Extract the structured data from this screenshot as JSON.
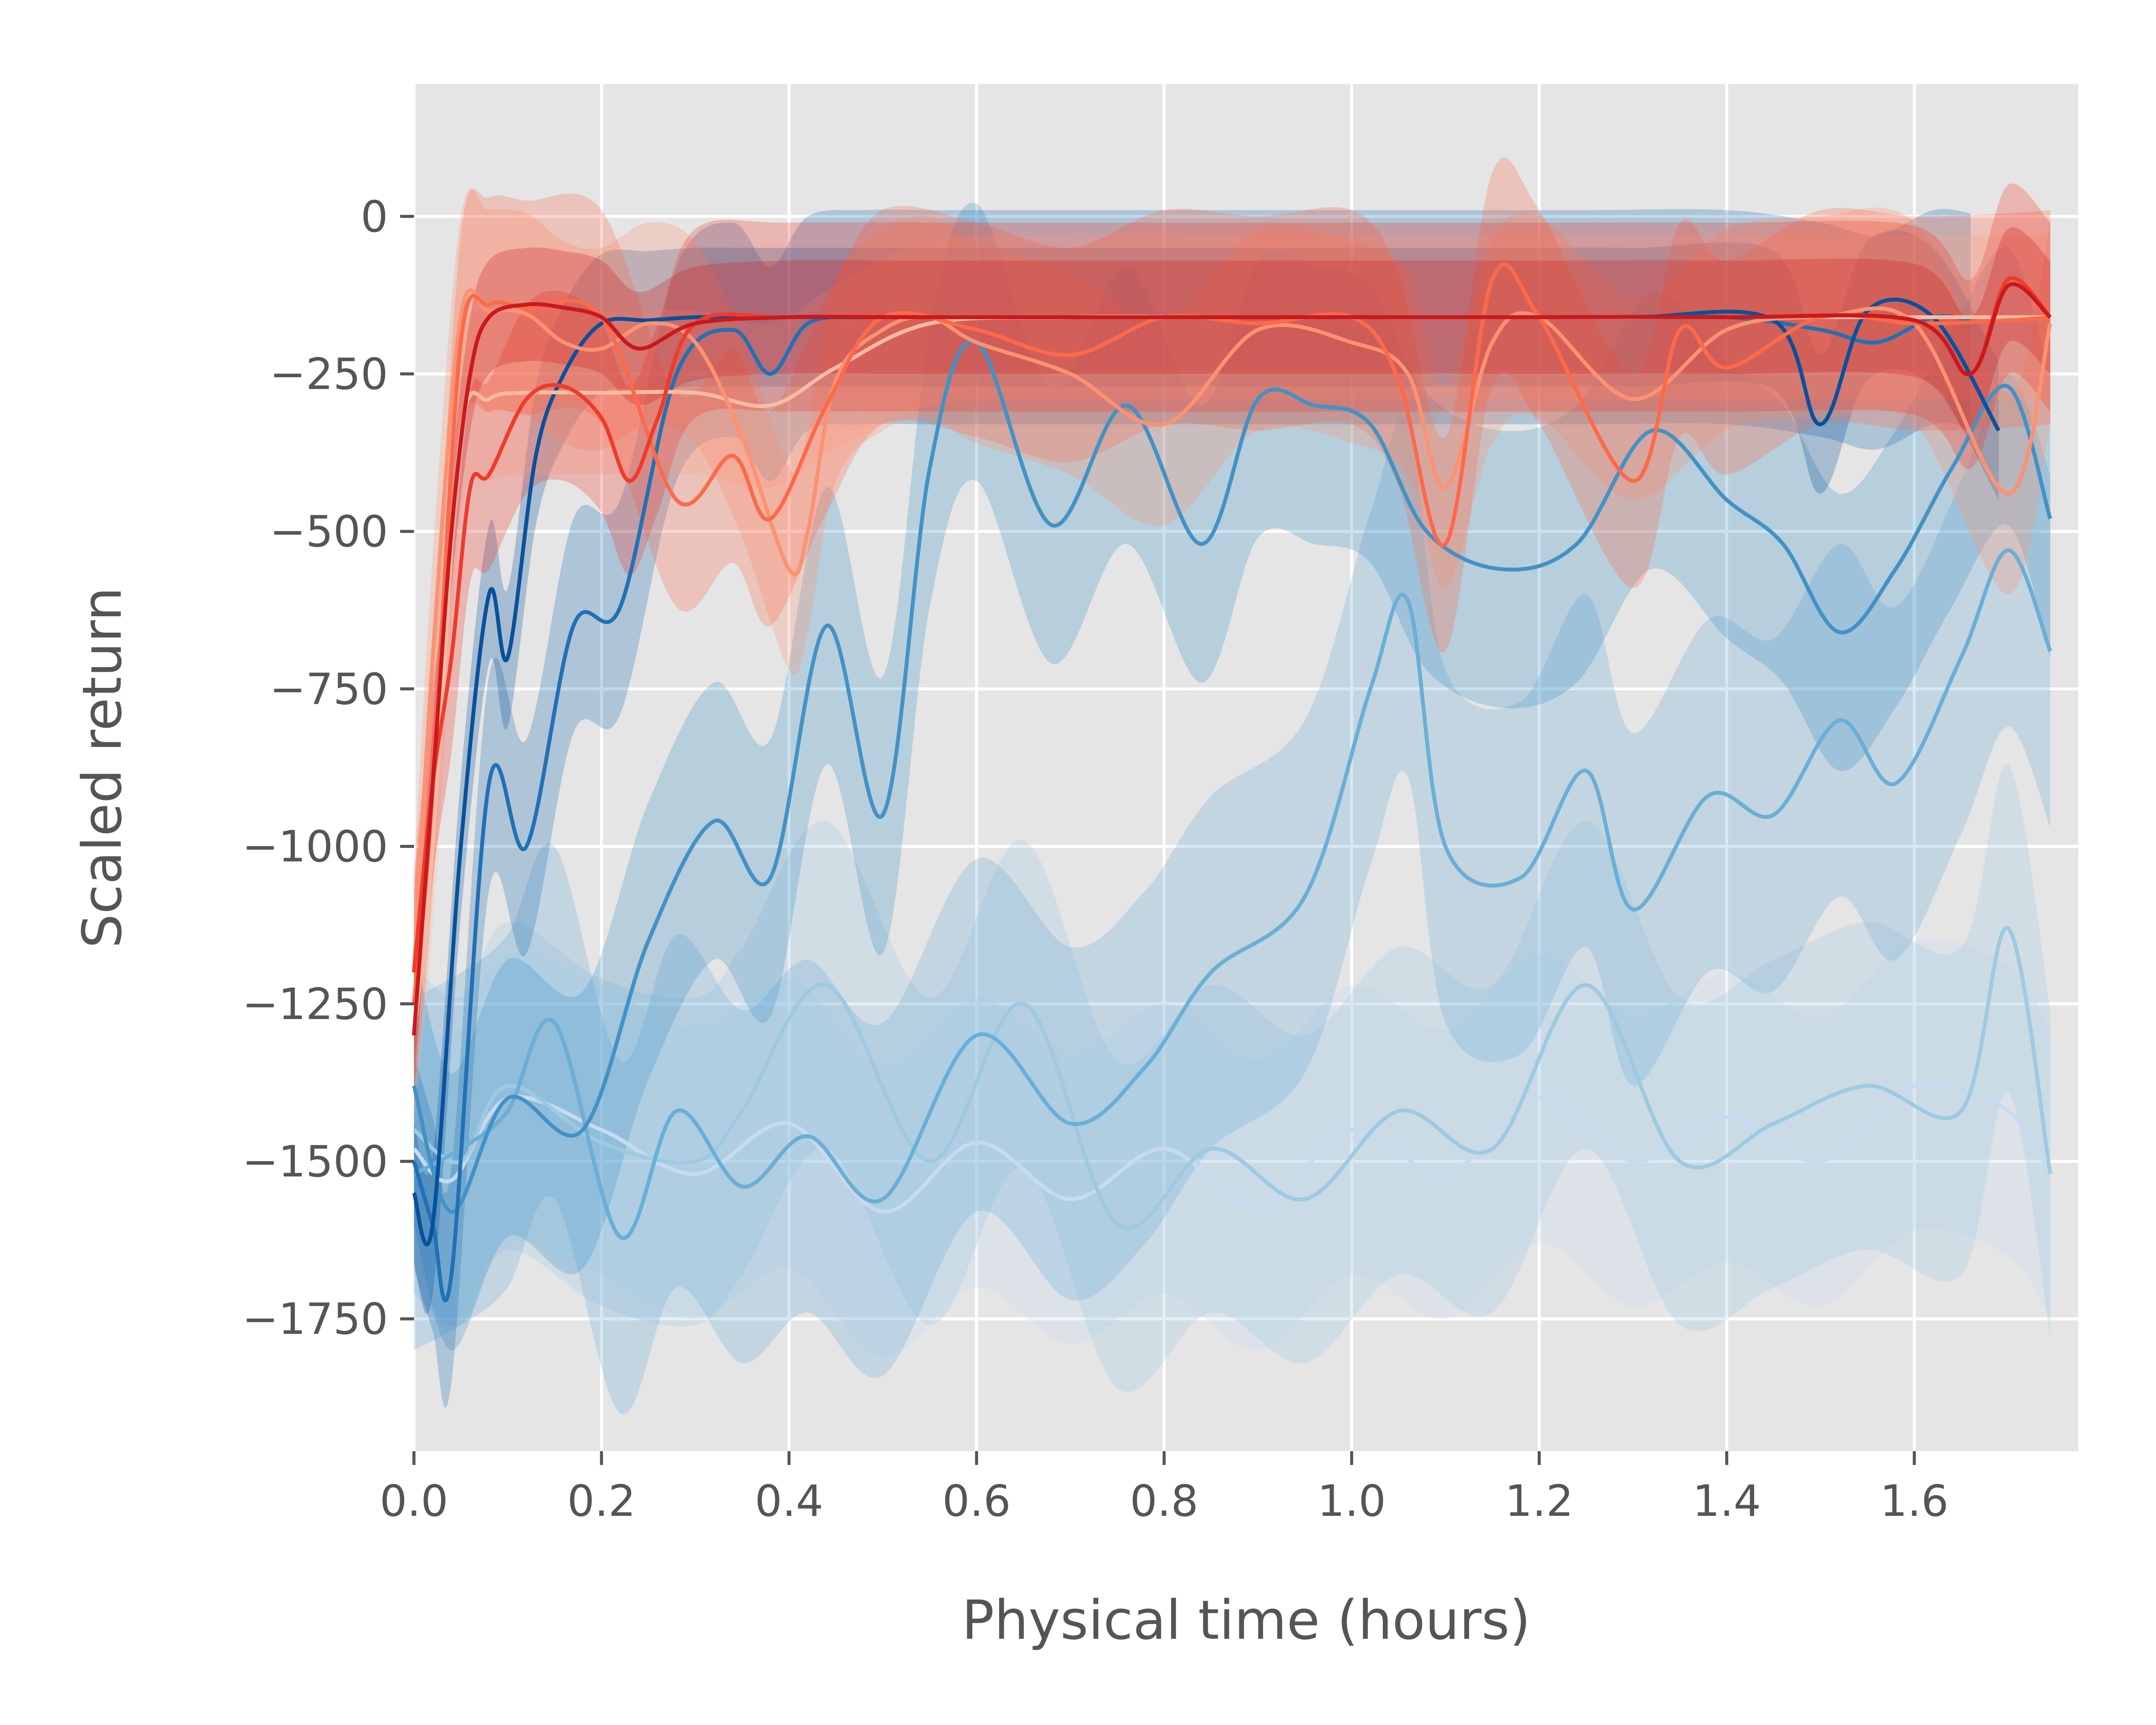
{
  "chart_data": {
    "type": "line",
    "xlabel": "Physical time (hours)",
    "ylabel": "Scaled return",
    "xlim": [
      0.0,
      1.775
    ],
    "ylim": [
      -1960,
      210
    ],
    "xticks": [
      "0.0",
      "0.2",
      "0.4",
      "0.6",
      "0.8",
      "1.0",
      "1.2",
      "1.4",
      "1.6"
    ],
    "yticks": [
      "0",
      "−250",
      "−500",
      "−750",
      "−1000",
      "−1250",
      "−1500",
      "−1750"
    ],
    "grid": true,
    "background": "#e5e5e5",
    "series": [
      {
        "color": "#c6dbef",
        "band": 230,
        "x": [
          0.0,
          0.04,
          0.1,
          0.2,
          0.3,
          0.4,
          0.5,
          0.6,
          0.7,
          0.8,
          0.9,
          1.0,
          1.1,
          1.2,
          1.3,
          1.4,
          1.5,
          1.6,
          1.7,
          1.745
        ],
        "y": [
          -1480,
          -1530,
          -1400,
          -1450,
          -1520,
          -1440,
          -1580,
          -1470,
          -1560,
          -1480,
          -1570,
          -1450,
          -1520,
          -1400,
          -1500,
          -1430,
          -1500,
          -1380,
          -1420,
          -1520
        ]
      },
      {
        "color": "#9ecae1",
        "band": 260,
        "x": [
          0.0,
          0.05,
          0.1,
          0.2,
          0.3,
          0.35,
          0.44,
          0.55,
          0.65,
          0.75,
          0.85,
          0.95,
          1.05,
          1.15,
          1.25,
          1.35,
          1.45,
          1.55,
          1.65,
          1.7,
          1.745
        ],
        "y": [
          -1450,
          -1500,
          -1380,
          -1470,
          -1500,
          -1420,
          -1220,
          -1500,
          -1250,
          -1600,
          -1480,
          -1560,
          -1420,
          -1480,
          -1220,
          -1500,
          -1440,
          -1380,
          -1420,
          -1130,
          -1520
        ]
      },
      {
        "color": "#6baed6",
        "band": 280,
        "x": [
          0.0,
          0.05,
          0.1,
          0.15,
          0.22,
          0.28,
          0.35,
          0.42,
          0.5,
          0.6,
          0.7,
          0.78,
          0.85,
          0.95,
          1.02,
          1.06,
          1.1,
          1.18,
          1.25,
          1.3,
          1.38,
          1.45,
          1.52,
          1.58,
          1.65,
          1.7,
          1.745
        ],
        "y": [
          -1520,
          -1480,
          -1420,
          -1280,
          -1620,
          -1420,
          -1540,
          -1460,
          -1560,
          -1300,
          -1440,
          -1350,
          -1200,
          -1080,
          -750,
          -610,
          -1000,
          -1050,
          -880,
          -1100,
          -920,
          -950,
          -800,
          -900,
          -700,
          -530,
          -690
        ]
      },
      {
        "color": "#4292c6",
        "band": 220,
        "x": [
          0.0,
          0.04,
          0.1,
          0.18,
          0.25,
          0.32,
          0.38,
          0.44,
          0.5,
          0.55,
          0.6,
          0.68,
          0.76,
          0.84,
          0.9,
          0.96,
          1.02,
          1.08,
          1.16,
          1.24,
          1.32,
          1.4,
          1.46,
          1.52,
          1.58,
          1.64,
          1.7,
          1.745
        ],
        "y": [
          -1380,
          -1580,
          -1400,
          -1450,
          -1150,
          -960,
          -1050,
          -650,
          -950,
          -400,
          -200,
          -490,
          -300,
          -520,
          -290,
          -300,
          -330,
          -500,
          -560,
          -520,
          -340,
          -450,
          -520,
          -660,
          -560,
          -400,
          -270,
          -480
        ]
      },
      {
        "color": "#2171b5",
        "band": 170,
        "x": [
          0.0,
          0.02,
          0.04,
          0.08,
          0.12,
          0.17,
          0.22,
          0.28,
          0.34,
          0.38,
          0.42,
          0.48,
          0.55,
          0.65,
          0.8,
          0.95,
          1.1,
          1.25,
          1.4,
          1.5,
          1.56,
          1.62,
          1.66
        ],
        "y": [
          -1500,
          -1600,
          -1680,
          -900,
          -1000,
          -650,
          -620,
          -250,
          -180,
          -250,
          -170,
          -160,
          -160,
          -160,
          -160,
          -160,
          -160,
          -160,
          -160,
          -180,
          -200,
          -160,
          -165
        ]
      },
      {
        "color": "#08519c",
        "band": 110,
        "x": [
          0.0,
          0.02,
          0.05,
          0.08,
          0.1,
          0.13,
          0.16,
          0.2,
          0.25,
          0.3,
          0.35,
          0.4,
          0.45,
          0.55,
          0.7,
          0.85,
          1.0,
          1.15,
          1.3,
          1.45,
          1.5,
          1.55,
          1.62,
          1.69
        ],
        "y": [
          -1550,
          -1600,
          -1000,
          -600,
          -700,
          -380,
          -250,
          -170,
          -165,
          -160,
          -160,
          -160,
          -160,
          -160,
          -160,
          -160,
          -160,
          -160,
          -160,
          -165,
          -330,
          -150,
          -160,
          -340
        ]
      },
      {
        "color": "#fcbba1",
        "band": 130,
        "x": [
          0.0,
          0.02,
          0.05,
          0.08,
          0.12,
          0.2,
          0.3,
          0.38,
          0.45,
          0.55,
          0.7,
          0.85,
          1.0,
          1.15,
          1.3,
          1.45,
          1.6,
          1.7,
          1.745
        ],
        "y": [
          -1300,
          -1000,
          -350,
          -290,
          -280,
          -280,
          -280,
          -300,
          -240,
          -170,
          -160,
          -160,
          -160,
          -160,
          -160,
          -160,
          -160,
          -160,
          -160
        ]
      },
      {
        "color": "#fc9272",
        "band": 160,
        "x": [
          0.0,
          0.02,
          0.05,
          0.08,
          0.12,
          0.16,
          0.2,
          0.25,
          0.3,
          0.35,
          0.4,
          0.42,
          0.45,
          0.5,
          0.55,
          0.6,
          0.7,
          0.8,
          0.9,
          1.0,
          1.06,
          1.1,
          1.15,
          1.2,
          1.3,
          1.4,
          1.5,
          1.6,
          1.7,
          1.745
        ],
        "y": [
          -1200,
          -700,
          -160,
          -150,
          -155,
          -200,
          -210,
          -170,
          -200,
          -350,
          -560,
          -500,
          -260,
          -180,
          -160,
          -200,
          -250,
          -330,
          -180,
          -200,
          -250,
          -430,
          -200,
          -160,
          -290,
          -180,
          -160,
          -170,
          -440,
          -170
        ]
      },
      {
        "color": "#fb6a4a",
        "band": 170,
        "x": [
          0.0,
          0.02,
          0.05,
          0.08,
          0.12,
          0.2,
          0.28,
          0.34,
          0.38,
          0.44,
          0.5,
          0.6,
          0.7,
          0.8,
          0.9,
          1.0,
          1.05,
          1.1,
          1.15,
          1.2,
          1.3,
          1.35,
          1.4,
          1.5,
          1.6,
          1.7,
          1.745
        ],
        "y": [
          -1250,
          -900,
          -200,
          -140,
          -145,
          -160,
          -450,
          -380,
          -480,
          -300,
          -160,
          -180,
          -220,
          -160,
          -170,
          -160,
          -260,
          -520,
          -100,
          -160,
          -420,
          -180,
          -240,
          -160,
          -170,
          -165,
          -160
        ]
      },
      {
        "color": "#ef3b2c",
        "band": 150,
        "x": [
          0.0,
          0.02,
          0.04,
          0.06,
          0.08,
          0.12,
          0.16,
          0.2,
          0.23,
          0.26,
          0.3,
          0.4,
          0.6,
          0.8,
          1.0,
          1.2,
          1.4,
          1.6,
          1.66,
          1.7,
          1.745
        ],
        "y": [
          -1200,
          -900,
          -700,
          -430,
          -410,
          -290,
          -270,
          -320,
          -420,
          -320,
          -170,
          -160,
          -160,
          -160,
          -160,
          -160,
          -160,
          -165,
          -250,
          -100,
          -160
        ]
      },
      {
        "color": "#cb181d",
        "band": 90,
        "x": [
          0.0,
          0.02,
          0.04,
          0.06,
          0.08,
          0.12,
          0.16,
          0.2,
          0.24,
          0.3,
          0.4,
          0.5,
          0.6,
          0.8,
          1.0,
          1.2,
          1.4,
          1.6,
          1.66,
          1.7,
          1.745
        ],
        "y": [
          -1300,
          -900,
          -500,
          -250,
          -160,
          -140,
          -145,
          -160,
          -210,
          -170,
          -160,
          -160,
          -160,
          -160,
          -160,
          -160,
          -160,
          -165,
          -250,
          -110,
          -160
        ]
      }
    ]
  }
}
